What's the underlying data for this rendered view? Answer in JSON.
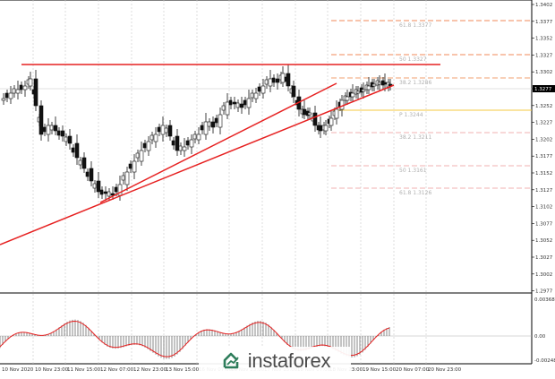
{
  "chart": {
    "price_labels": [
      "1.3402",
      "1.3377",
      "1.3352",
      "1.3327",
      "1.3302",
      "1.3277",
      "1.3252",
      "1.3227",
      "1.3202",
      "1.3177",
      "1.3152",
      "1.3127",
      "1.3102",
      "1.3077",
      "1.3052",
      "1.3027",
      "1.3002",
      "1.2977"
    ],
    "current_price": "1.3277",
    "date_labels": [
      "10 Nov 2020",
      "10 Nov 23:00",
      "11 Nov 15:00",
      "12 Nov 07:00",
      "12 Nov 23:00",
      "13 Nov 15:00",
      "16 Nov 07:00",
      "16 Nov 23:00",
      "17 Nov 15:00",
      "18 Nov 07:00",
      "18 Nov 23:00",
      "19 Nov 15:00",
      "20 Nov 07:00",
      "20 Nov 23:00"
    ],
    "fib_levels": [
      {
        "label": "61.8 1.3377",
        "color": "#f08a5a"
      },
      {
        "label": "50 1.3327",
        "color": "#f08a5a"
      },
      {
        "label": "38.2 1.3286",
        "color": "#f0a070"
      },
      {
        "label": "P 1.3244",
        "color": "#f5c842"
      },
      {
        "label": "38.2 1.3211",
        "color": "#f0b0b0"
      },
      {
        "label": "50 1.3161",
        "color": "#f0b0b0"
      },
      {
        "label": "61.8 1.3126",
        "color": "#f0b0b0"
      }
    ],
    "osc_labels": [
      "0.00368",
      "0.00",
      "-0.00248"
    ]
  },
  "watermark": {
    "text": "instaforex"
  },
  "colors": {
    "trendline": "#e62020",
    "resistance": "#e62020",
    "osc_signal": "#e62020",
    "candle": "#111111"
  }
}
